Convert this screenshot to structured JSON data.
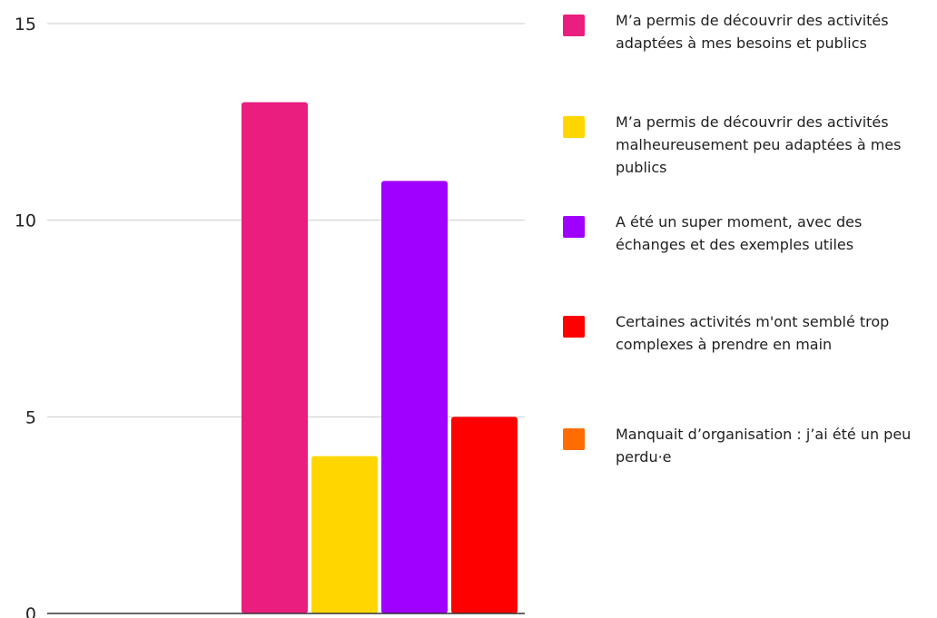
{
  "chart_data": {
    "type": "bar",
    "categories": [
      "M’a permis de découvrir des activités adaptées à mes besoins et publics",
      "M’a permis de découvrir des activités malheureusement peu adaptées à mes publics",
      "A été un super moment, avec des échanges et des exemples utiles",
      "Certaines activités m'ont semblé trop complexes à prendre en main",
      "Manquait d’organisation : j’ai été un peu perdu·e"
    ],
    "values": [
      13,
      4,
      11,
      5,
      0
    ],
    "colors": [
      "#e91e7e",
      "#ffd600",
      "#a000ff",
      "#ff0000",
      "#ff6d00"
    ],
    "ylim": [
      0,
      15
    ],
    "yticks": [
      0,
      5,
      10,
      15
    ],
    "grid": true,
    "legend_position": "right",
    "title": "",
    "xlabel": "",
    "ylabel": ""
  }
}
